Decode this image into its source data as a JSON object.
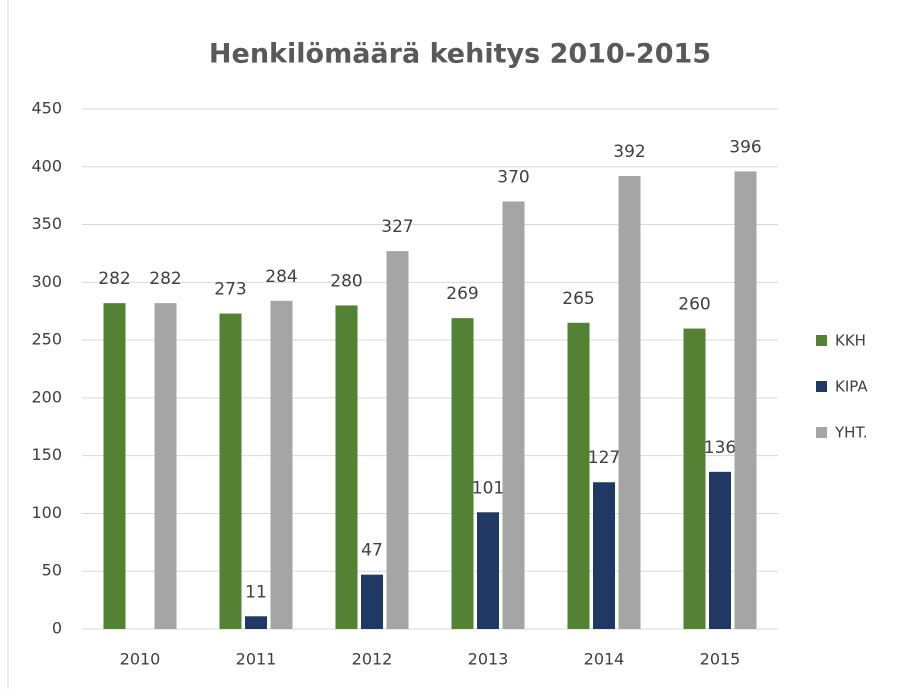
{
  "chart_data": {
    "type": "bar",
    "title": "Henkilömäärä kehitys 2010-2015",
    "categories": [
      "2010",
      "2011",
      "2012",
      "2013",
      "2014",
      "2015"
    ],
    "series": [
      {
        "name": "KKH",
        "color": "#548235",
        "values": [
          282,
          273,
          280,
          269,
          265,
          260
        ]
      },
      {
        "name": "KIPA",
        "color": "#203864",
        "values": [
          null,
          11,
          47,
          101,
          127,
          136
        ]
      },
      {
        "name": "YHT.",
        "color": "#a5a5a5",
        "values": [
          282,
          284,
          327,
          370,
          392,
          396
        ]
      }
    ],
    "ylim": [
      0,
      450
    ],
    "yticks": [
      0,
      50,
      100,
      150,
      200,
      250,
      300,
      350,
      400,
      450
    ],
    "grid": true,
    "legend": "right"
  }
}
